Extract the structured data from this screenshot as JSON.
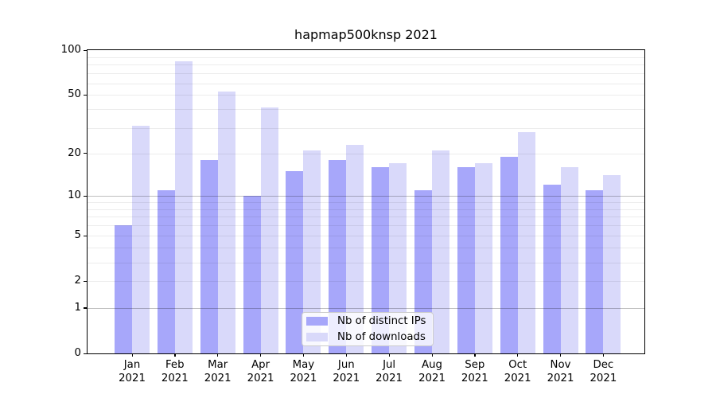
{
  "chart_data": {
    "type": "bar",
    "title": "hapmap500knsp 2021",
    "categories": [
      "Jan 2021",
      "Feb 2021",
      "Mar 2021",
      "Apr 2021",
      "May 2021",
      "Jun 2021",
      "Jul 2021",
      "Aug 2021",
      "Sep 2021",
      "Oct 2021",
      "Nov 2021",
      "Dec 2021"
    ],
    "series": [
      {
        "name": "Nb of distinct IPs",
        "color": "#a7a7fa",
        "values": [
          6,
          11,
          18,
          10,
          15,
          18,
          16,
          11,
          16,
          19,
          12,
          11
        ]
      },
      {
        "name": "Nb of downloads",
        "color": "#d9d9fa",
        "values": [
          31,
          84,
          53,
          41,
          21,
          23,
          17,
          21,
          17,
          28,
          16,
          14
        ]
      }
    ],
    "xlabel": "",
    "ylabel": "",
    "yscale": "log1p",
    "ylim": [
      0,
      100
    ],
    "yticks": [
      0,
      1,
      2,
      5,
      10,
      20,
      50,
      100
    ],
    "minor_grid_values": [
      2,
      3,
      4,
      5,
      6,
      7,
      8,
      9,
      20,
      30,
      40,
      50,
      60,
      70,
      80,
      90
    ],
    "major_grid_values": [
      1,
      10
    ],
    "grid": "horizontal",
    "legend_position": "lower center",
    "colors": {
      "minor_grid": "rgba(0,0,0,0.075)",
      "major_grid": "rgba(0,0,0,0.25)",
      "spine": "#000000",
      "text": "#000000",
      "background": "#ffffff"
    }
  }
}
